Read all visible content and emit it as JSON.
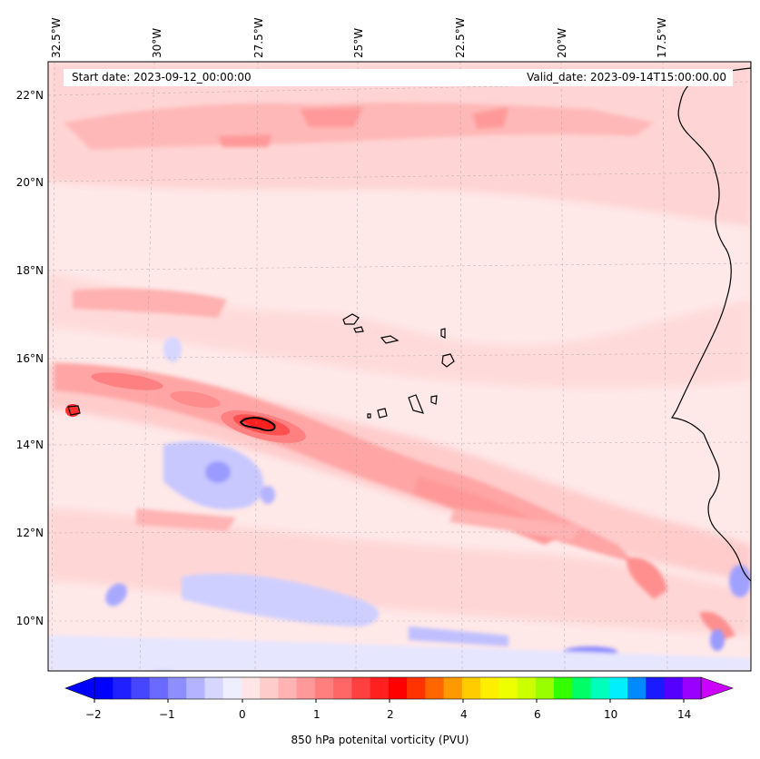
{
  "info": {
    "start_date": "Start date: 2023-09-12_00:00:00",
    "valid_date": "Valid_date: 2023-09-14T15:00:00.00"
  },
  "axes": {
    "lon_labels": [
      "32.5°W",
      "30°W",
      "27.5°W",
      "25°W",
      "22.5°W",
      "20°W",
      "17.5°W"
    ],
    "lat_labels": [
      "22°N",
      "20°N",
      "18°N",
      "16°N",
      "14°N",
      "12°N",
      "10°N"
    ]
  },
  "colorbar": {
    "label": "850 hPa potenital vorticity (PVU)",
    "tick_labels": [
      "−2",
      "−1",
      "0",
      "1",
      "2",
      "4",
      "6",
      "10",
      "14"
    ],
    "colors": [
      "#0000ff",
      "#2020ff",
      "#4646ff",
      "#6a6aff",
      "#8e8eff",
      "#b3b3ff",
      "#d6d6ff",
      "#eeeeff",
      "#ffe5e5",
      "#ffcccc",
      "#ffb3b3",
      "#ff9999",
      "#ff7f7f",
      "#ff6666",
      "#ff4040",
      "#ff2020",
      "#ff0000",
      "#ff3300",
      "#ff6600",
      "#ff9900",
      "#ffcc00",
      "#ffee00",
      "#eeff00",
      "#ccff00",
      "#99ff00",
      "#33ff00",
      "#00ff66",
      "#00ffbb",
      "#00eeff",
      "#0088ff",
      "#1a1aff",
      "#5500ff",
      "#9900ff"
    ],
    "under_color": "#0000ff",
    "over_color": "#cc00ff"
  },
  "field": {
    "background_color": "#ffe8e8",
    "description_levels": [
      "negative blue patches",
      "light pink",
      "medium pink",
      "red maximum"
    ]
  }
}
